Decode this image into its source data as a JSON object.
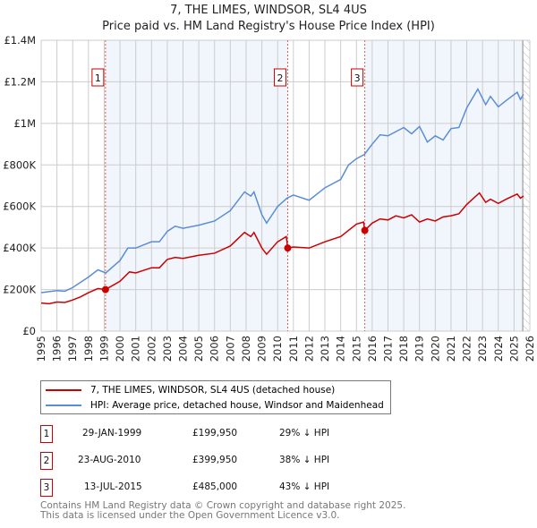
{
  "chart_data": {
    "type": "line",
    "title": "7, THE LIMES, WINDSOR, SL4 4US",
    "subtitle": "Price paid vs. HM Land Registry's House Price Index (HPI)",
    "xlim": [
      1995,
      2026
    ],
    "ylim": [
      0,
      1400000
    ],
    "x_ticks": [
      "1995",
      "1996",
      "1997",
      "1998",
      "1999",
      "2000",
      "2001",
      "2002",
      "2003",
      "2004",
      "2005",
      "2006",
      "2007",
      "2008",
      "2009",
      "2010",
      "2011",
      "2012",
      "2013",
      "2014",
      "2015",
      "2016",
      "2017",
      "2018",
      "2019",
      "2020",
      "2021",
      "2022",
      "2023",
      "2024",
      "2025",
      "2026"
    ],
    "y_ticks": [
      {
        "v": 0,
        "label": "£0"
      },
      {
        "v": 200000,
        "label": "£200K"
      },
      {
        "v": 400000,
        "label": "£400K"
      },
      {
        "v": 600000,
        "label": "£600K"
      },
      {
        "v": 800000,
        "label": "£800K"
      },
      {
        "v": 1000000,
        "label": "£1M"
      },
      {
        "v": 1200000,
        "label": "£1.2M"
      },
      {
        "v": 1400000,
        "label": "£1.4M"
      }
    ],
    "grid": true,
    "forecast_from": 2025.55,
    "series": [
      {
        "name": "7, THE LIMES, WINDSOR, SL4 4US (detached house)",
        "color": "#cc0000",
        "points": [
          [
            1995,
            135000
          ],
          [
            1995.5,
            132000
          ],
          [
            1996,
            140000
          ],
          [
            1996.5,
            138000
          ],
          [
            1997,
            150000
          ],
          [
            1997.5,
            165000
          ],
          [
            1998,
            185000
          ],
          [
            1998.6,
            205000
          ],
          [
            1999.08,
            199950
          ],
          [
            2000,
            240000
          ],
          [
            2000.6,
            285000
          ],
          [
            2001,
            280000
          ],
          [
            2002,
            305000
          ],
          [
            2002.5,
            305000
          ],
          [
            2003,
            345000
          ],
          [
            2003.5,
            355000
          ],
          [
            2004,
            350000
          ],
          [
            2005,
            365000
          ],
          [
            2006,
            375000
          ],
          [
            2007,
            410000
          ],
          [
            2007.9,
            475000
          ],
          [
            2008.3,
            455000
          ],
          [
            2008.5,
            475000
          ],
          [
            2009,
            400000
          ],
          [
            2009.3,
            370000
          ],
          [
            2010,
            430000
          ],
          [
            2010.55,
            455000
          ],
          [
            2010.64,
            399950
          ],
          [
            2011,
            405000
          ],
          [
            2012,
            400000
          ],
          [
            2013,
            430000
          ],
          [
            2014,
            455000
          ],
          [
            2015,
            515000
          ],
          [
            2015.45,
            525000
          ],
          [
            2015.53,
            485000
          ],
          [
            2016,
            520000
          ],
          [
            2016.5,
            540000
          ],
          [
            2017,
            535000
          ],
          [
            2017.5,
            555000
          ],
          [
            2018,
            545000
          ],
          [
            2018.5,
            560000
          ],
          [
            2019,
            525000
          ],
          [
            2019.5,
            540000
          ],
          [
            2020,
            530000
          ],
          [
            2020.5,
            550000
          ],
          [
            2021,
            555000
          ],
          [
            2021.5,
            565000
          ],
          [
            2022,
            610000
          ],
          [
            2022.8,
            665000
          ],
          [
            2023.2,
            620000
          ],
          [
            2023.5,
            635000
          ],
          [
            2024,
            615000
          ],
          [
            2024.5,
            635000
          ],
          [
            2025.2,
            660000
          ],
          [
            2025.4,
            640000
          ],
          [
            2025.6,
            650000
          ]
        ]
      },
      {
        "name": "HPI: Average price, detached house, Windsor and Maidenhead",
        "color": "#5b8dd6",
        "points": [
          [
            1995,
            185000
          ],
          [
            1996,
            195000
          ],
          [
            1996.5,
            192000
          ],
          [
            1997,
            210000
          ],
          [
            1998,
            260000
          ],
          [
            1998.6,
            295000
          ],
          [
            1999.1,
            280000
          ],
          [
            2000,
            340000
          ],
          [
            2000.5,
            400000
          ],
          [
            2001,
            400000
          ],
          [
            2002,
            430000
          ],
          [
            2002.5,
            430000
          ],
          [
            2003,
            480000
          ],
          [
            2003.5,
            505000
          ],
          [
            2004,
            495000
          ],
          [
            2005,
            510000
          ],
          [
            2006,
            530000
          ],
          [
            2007,
            580000
          ],
          [
            2007.9,
            670000
          ],
          [
            2008.3,
            650000
          ],
          [
            2008.5,
            670000
          ],
          [
            2009,
            560000
          ],
          [
            2009.3,
            520000
          ],
          [
            2010,
            600000
          ],
          [
            2010.6,
            640000
          ],
          [
            2011,
            655000
          ],
          [
            2012,
            630000
          ],
          [
            2013,
            690000
          ],
          [
            2014,
            730000
          ],
          [
            2014.5,
            800000
          ],
          [
            2015,
            830000
          ],
          [
            2015.5,
            850000
          ],
          [
            2016,
            900000
          ],
          [
            2016.5,
            945000
          ],
          [
            2017,
            940000
          ],
          [
            2018,
            980000
          ],
          [
            2018.5,
            950000
          ],
          [
            2019,
            985000
          ],
          [
            2019.5,
            910000
          ],
          [
            2020,
            940000
          ],
          [
            2020.5,
            920000
          ],
          [
            2021,
            975000
          ],
          [
            2021.5,
            980000
          ],
          [
            2022,
            1075000
          ],
          [
            2022.7,
            1165000
          ],
          [
            2023.2,
            1090000
          ],
          [
            2023.5,
            1130000
          ],
          [
            2024,
            1080000
          ],
          [
            2024.5,
            1110000
          ],
          [
            2025.2,
            1150000
          ],
          [
            2025.4,
            1115000
          ],
          [
            2025.6,
            1140000
          ]
        ]
      }
    ],
    "sales": [
      {
        "label": "1",
        "x": 1999.08,
        "price": 199950,
        "date": "29-JAN-1999",
        "price_label": "£199,950",
        "hpi": "29% ↓ HPI"
      },
      {
        "label": "2",
        "x": 2010.64,
        "price": 399950,
        "date": "23-AUG-2010",
        "price_label": "£399,950",
        "hpi": "38% ↓ HPI"
      },
      {
        "label": "3",
        "x": 2015.53,
        "price": 485000,
        "date": "13-JUL-2015",
        "price_label": "£485,000",
        "hpi": "43% ↓ HPI"
      }
    ]
  },
  "footer": [
    "Contains HM Land Registry data © Crown copyright and database right 2025.",
    "This data is licensed under the Open Government Licence v3.0."
  ]
}
